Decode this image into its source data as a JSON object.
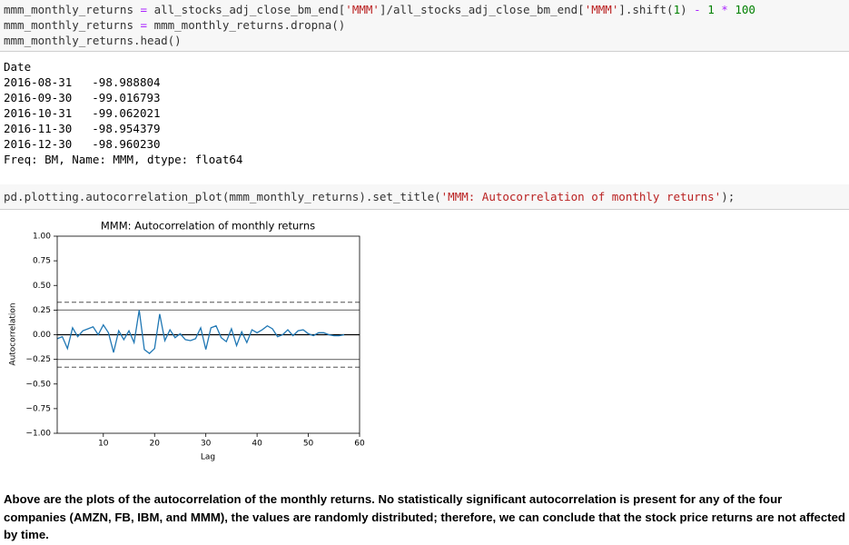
{
  "code_cell_1": {
    "lines": [
      [
        {
          "text": "mmm_monthly_returns ",
          "color": "#333333"
        },
        {
          "text": "=",
          "color": "#aa22ff"
        },
        {
          "text": " all_stocks_adj_close_bm_end[",
          "color": "#333333"
        },
        {
          "text": "'MMM'",
          "color": "#ba2121"
        },
        {
          "text": "]/all_stocks_adj_close_bm_end[",
          "color": "#333333"
        },
        {
          "text": "'MMM'",
          "color": "#ba2121"
        },
        {
          "text": "].shift(",
          "color": "#333333"
        },
        {
          "text": "1",
          "color": "#008000"
        },
        {
          "text": ") ",
          "color": "#333333"
        },
        {
          "text": "-",
          "color": "#aa22ff"
        },
        {
          "text": " ",
          "color": "#333333"
        },
        {
          "text": "1",
          "color": "#008000"
        },
        {
          "text": " ",
          "color": "#333333"
        },
        {
          "text": "*",
          "color": "#aa22ff"
        },
        {
          "text": " ",
          "color": "#333333"
        },
        {
          "text": "100",
          "color": "#008000"
        }
      ],
      [
        {
          "text": "mmm_monthly_returns ",
          "color": "#333333"
        },
        {
          "text": "=",
          "color": "#aa22ff"
        },
        {
          "text": " mmm_monthly_returns.dropna()",
          "color": "#333333"
        }
      ],
      [
        {
          "text": "mmm_monthly_returns.head()",
          "color": "#333333"
        }
      ]
    ]
  },
  "output_1": {
    "index_name": "Date",
    "rows": [
      [
        "2016-08-31",
        "-98.988804"
      ],
      [
        "2016-09-30",
        "-99.016793"
      ],
      [
        "2016-10-31",
        "-99.062021"
      ],
      [
        "2016-11-30",
        "-98.954379"
      ],
      [
        "2016-12-30",
        "-98.960230"
      ]
    ],
    "footer": "Freq: BM, Name: MMM, dtype: float64"
  },
  "code_cell_2": {
    "lines": [
      [
        {
          "text": "pd.plotting.autocorrelation_plot(mmm_monthly_returns).set_title(",
          "color": "#333333"
        },
        {
          "text": "'MMM: Autocorrelation of monthly returns'",
          "color": "#ba2121"
        },
        {
          "text": ");",
          "color": "#333333"
        }
      ]
    ]
  },
  "chart_data": {
    "type": "line",
    "title": "MMM: Autocorrelation of monthly returns",
    "x_label": "Lag",
    "y_label": "Autocorrelation",
    "x": [
      1,
      2,
      3,
      4,
      5,
      6,
      7,
      8,
      9,
      10,
      11,
      12,
      13,
      14,
      15,
      16,
      17,
      18,
      19,
      20,
      21,
      22,
      23,
      24,
      25,
      26,
      27,
      28,
      29,
      30,
      31,
      32,
      33,
      34,
      35,
      36,
      37,
      38,
      39,
      40,
      41,
      42,
      43,
      44,
      45,
      46,
      47,
      48,
      49,
      50,
      51,
      52,
      53,
      54,
      55,
      56,
      57
    ],
    "series": [
      {
        "color": "#1f77b4",
        "values": [
          -0.04,
          -0.02,
          -0.14,
          0.07,
          -0.02,
          0.04,
          0.06,
          0.08,
          0.0,
          0.1,
          0.02,
          -0.18,
          0.04,
          -0.05,
          0.04,
          -0.08,
          0.25,
          -0.15,
          -0.19,
          -0.14,
          0.21,
          -0.06,
          0.05,
          -0.03,
          0.01,
          -0.05,
          -0.06,
          -0.04,
          0.07,
          -0.15,
          0.07,
          0.09,
          -0.03,
          -0.07,
          0.06,
          -0.11,
          0.03,
          -0.08,
          0.05,
          0.02,
          0.05,
          0.09,
          0.06,
          -0.02,
          0.0,
          0.05,
          -0.01,
          0.04,
          0.05,
          0.01,
          -0.01,
          0.02,
          0.02,
          0.0,
          -0.01,
          -0.01,
          0.0
        ]
      }
    ],
    "reference_lines": [
      {
        "value": 0.33,
        "style": "dashed",
        "color": "#808080"
      },
      {
        "value": 0.25,
        "style": "solid",
        "color": "#808080"
      },
      {
        "value": 0,
        "style": "solid",
        "color": "#000000"
      },
      {
        "value": -0.25,
        "style": "solid",
        "color": "#808080"
      },
      {
        "value": -0.33,
        "style": "dashed",
        "color": "#808080"
      }
    ],
    "xlim": [
      1,
      60
    ],
    "xticks": [
      10,
      20,
      30,
      40,
      50,
      60
    ],
    "ylim": [
      -1,
      1
    ],
    "yticks": [
      {
        "value": 1,
        "label": "1.00"
      },
      {
        "value": 0.75,
        "label": "0.75"
      },
      {
        "value": 0.5,
        "label": "0.50"
      },
      {
        "value": 0.25,
        "label": "0.25"
      },
      {
        "value": 0,
        "label": "0.00"
      },
      {
        "value": -0.25,
        "label": "−0.25"
      },
      {
        "value": -0.5,
        "label": "−0.50"
      },
      {
        "value": -0.75,
        "label": "−0.75"
      },
      {
        "value": -1,
        "label": "−1.00"
      }
    ]
  },
  "markdown": {
    "text": "Above are the plots of the autocorrelation of the monthly returns. No statistically significant autocorrelation is present for any of the four companies (AMZN, FB, IBM, and MMM), the values are randomly distributed; therefore, we can conclude that the stock price returns are not affected by time."
  }
}
